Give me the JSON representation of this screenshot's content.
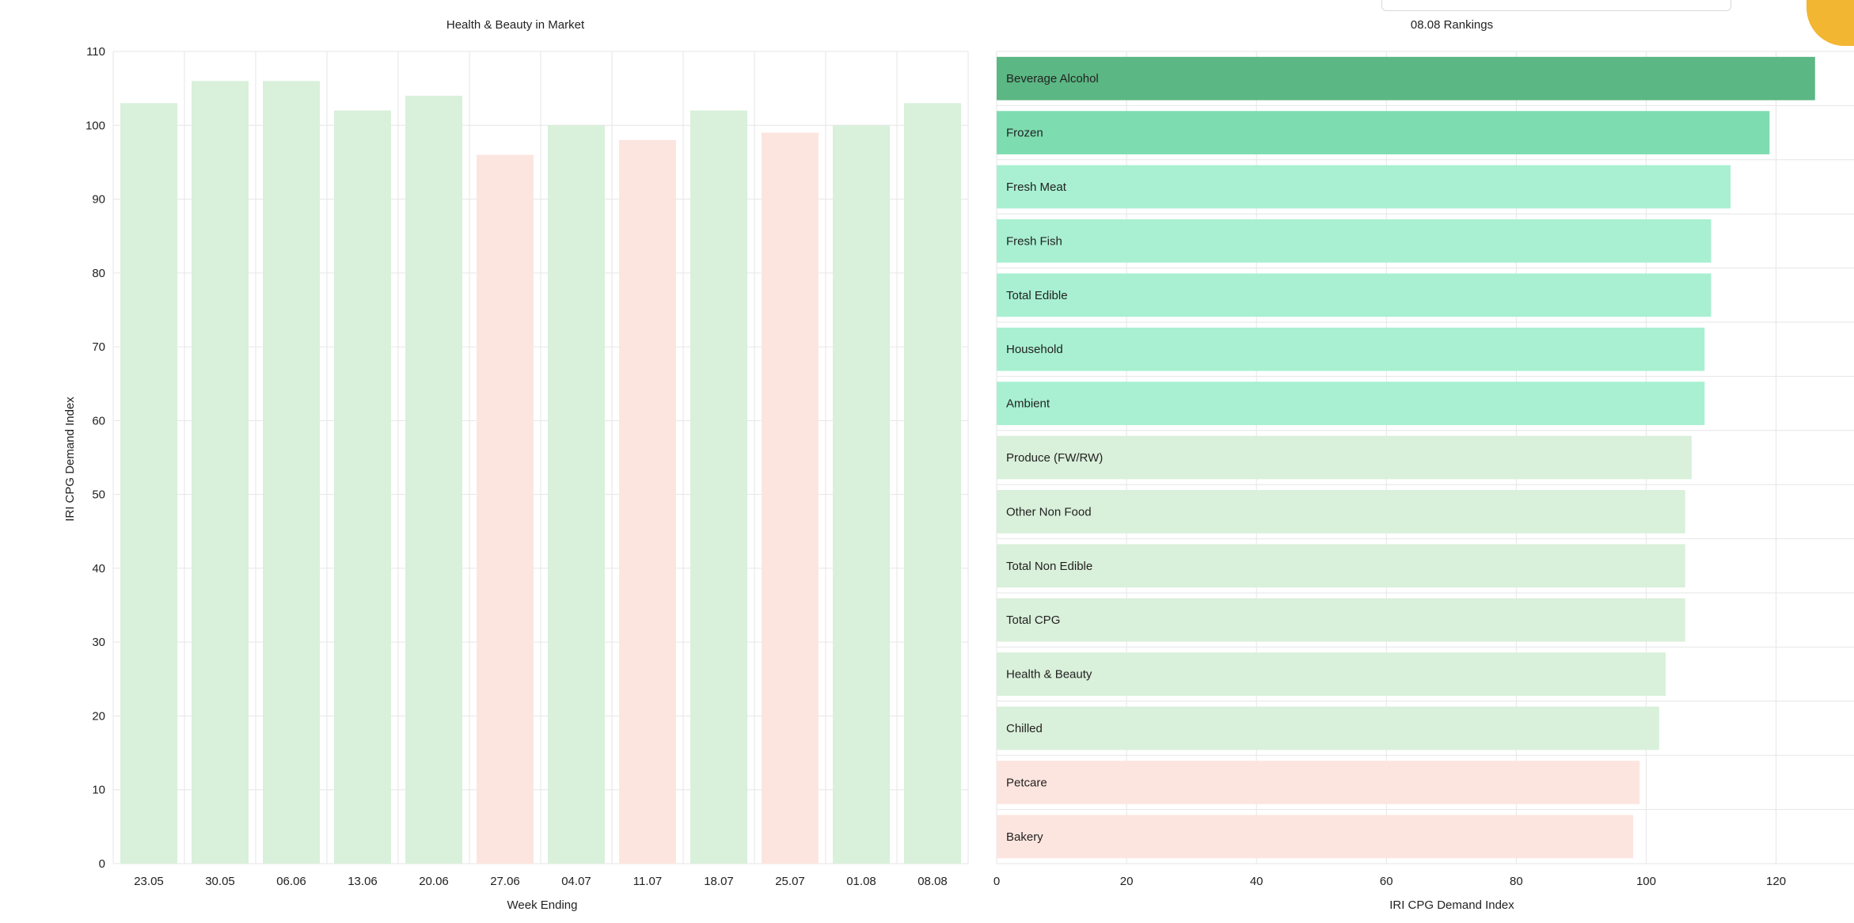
{
  "chart_data": [
    {
      "type": "bar",
      "title": "Health & Beauty in Market",
      "xlabel": "Week Ending",
      "ylabel": "IRI CPG Demand Index",
      "ylim": [
        0,
        110
      ],
      "yticks": [
        0,
        10,
        20,
        30,
        40,
        50,
        60,
        70,
        80,
        90,
        100,
        110
      ],
      "categories": [
        "23.05",
        "30.05",
        "06.06",
        "13.06",
        "20.06",
        "27.06",
        "04.07",
        "11.07",
        "18.07",
        "25.07",
        "01.08",
        "08.08"
      ],
      "values": [
        103,
        106,
        106,
        102,
        104,
        96,
        100,
        98,
        102,
        99,
        100,
        103
      ],
      "colors": [
        "#d9f0da",
        "#d9f0da",
        "#d9f0da",
        "#d9f0da",
        "#d9f0da",
        "#fde5df",
        "#d9f0da",
        "#fde5df",
        "#d9f0da",
        "#fde5df",
        "#d9f0da",
        "#d9f0da"
      ],
      "grid": true
    },
    {
      "type": "bar",
      "orientation": "horizontal",
      "title": "08.08 Rankings",
      "xlabel": "IRI CPG Demand Index",
      "ylabel": "",
      "xlim": [
        0,
        132
      ],
      "xticks": [
        0,
        20,
        40,
        60,
        80,
        100,
        120
      ],
      "categories": [
        "Beverage Alcohol",
        "Frozen",
        "Fresh Meat",
        "Fresh Fish",
        "Total Edible",
        "Household",
        "Ambient",
        "Produce (FW/RW)",
        "Other Non Food",
        "Total Non Edible",
        "Total CPG",
        "Health & Beauty",
        "Chilled",
        "Petcare",
        "Bakery"
      ],
      "values": [
        126,
        119,
        113,
        110,
        110,
        109,
        109,
        107,
        106,
        106,
        106,
        103,
        102,
        99,
        98
      ],
      "colors": [
        "#5bb783",
        "#7ddcb0",
        "#a8f0d1",
        "#a8f0d1",
        "#a8f0d1",
        "#a8f0d1",
        "#a8f0d1",
        "#d9f0da",
        "#d9f0da",
        "#d9f0da",
        "#d9f0da",
        "#d9f0da",
        "#d9f0da",
        "#fde5df",
        "#fde5df"
      ],
      "grid": true
    }
  ],
  "colors": {
    "grid": "#e6e6e6",
    "axis_text": "#222222",
    "brand_accent": "#f3b632"
  }
}
